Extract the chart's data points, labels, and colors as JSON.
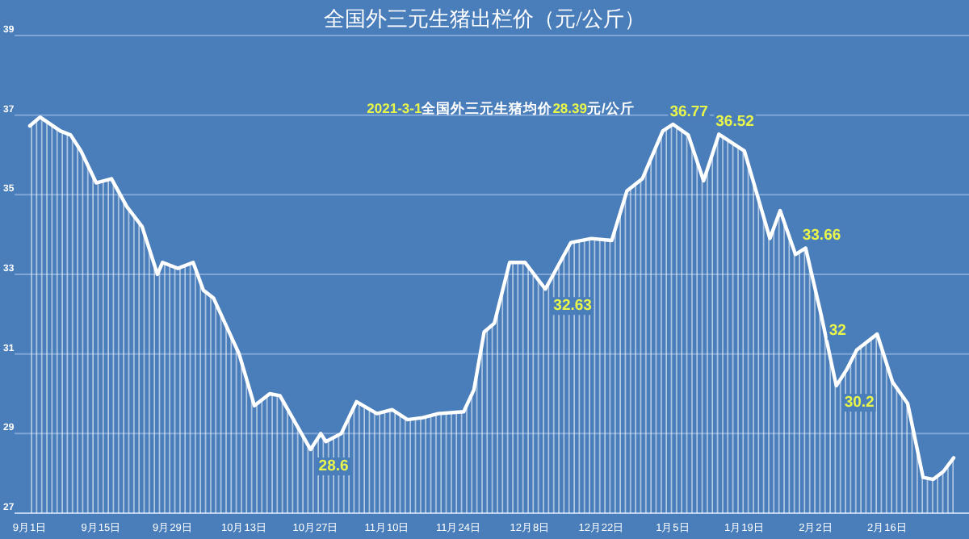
{
  "chart_data": {
    "type": "area",
    "title": "全国外三元生猪出栏价（元/公斤）",
    "annotations": [
      "2021-3-1全国外三元生猪均价28.39元/公斤",
      {
        "text": "28.6",
        "x": "2020-10-26",
        "y": 28.6
      },
      {
        "text": "32.63",
        "x": "2020-12-11",
        "y": 32.63
      },
      {
        "text": "36.77",
        "x": "2021-01-05",
        "y": 36.77
      },
      {
        "text": "36.52",
        "x": "2021-01-14",
        "y": 36.52
      },
      {
        "text": "33.66",
        "x": "2021-01-31",
        "y": 33.66
      },
      {
        "text": "32",
        "x": "2021-02-03",
        "y": 32
      },
      {
        "text": "30.2",
        "x": "2021-02-06",
        "y": 30.2
      }
    ],
    "x": [
      "2020-09-01",
      "2020-09-03",
      "2020-09-07",
      "2020-09-09",
      "2020-09-11",
      "2020-09-14",
      "2020-09-17",
      "2020-09-20",
      "2020-09-23",
      "2020-09-26",
      "2020-09-27",
      "2020-09-30",
      "2020-10-03",
      "2020-10-05",
      "2020-10-07",
      "2020-10-12",
      "2020-10-15",
      "2020-10-18",
      "2020-10-20",
      "2020-10-26",
      "2020-10-28",
      "2020-10-29",
      "2020-11-01",
      "2020-11-04",
      "2020-11-08",
      "2020-11-11",
      "2020-11-14",
      "2020-11-17",
      "2020-11-20",
      "2020-11-25",
      "2020-11-27",
      "2020-11-29",
      "2020-12-01",
      "2020-12-04",
      "2020-12-07",
      "2020-12-11",
      "2020-12-16",
      "2020-12-20",
      "2020-12-24",
      "2020-12-27",
      "2020-12-30",
      "2021-01-03",
      "2021-01-05",
      "2021-01-08",
      "2021-01-11",
      "2021-01-14",
      "2021-01-19",
      "2021-01-24",
      "2021-01-26",
      "2021-01-29",
      "2021-01-31",
      "2021-02-03",
      "2021-02-06",
      "2021-02-08",
      "2021-02-10",
      "2021-02-14",
      "2021-02-17",
      "2021-02-20",
      "2021-02-23",
      "2021-02-25",
      "2021-02-27",
      "2021-03-01"
    ],
    "series": [
      {
        "color": "#ffffff",
        "values": [
          36.73,
          36.95,
          36.6,
          36.5,
          36.1,
          35.3,
          35.4,
          34.7,
          34.2,
          33.0,
          33.3,
          33.15,
          33.3,
          32.6,
          32.4,
          31.0,
          29.7,
          30.0,
          29.95,
          28.6,
          29.0,
          28.8,
          29.0,
          29.8,
          29.5,
          29.6,
          29.35,
          29.4,
          29.5,
          29.55,
          30.1,
          31.55,
          31.77,
          33.3,
          33.3,
          32.63,
          33.8,
          33.9,
          33.85,
          35.1,
          35.4,
          36.6,
          36.77,
          36.5,
          35.35,
          36.52,
          36.1,
          33.9,
          34.6,
          33.5,
          33.66,
          32,
          30.2,
          30.6,
          31.1,
          31.5,
          30.3,
          29.75,
          27.9,
          27.85,
          28.05,
          28.39
        ]
      }
    ],
    "xlim": [
      "2020-08-29",
      "2021-03-04"
    ],
    "ylim": [
      27,
      39
    ],
    "yticks": [
      27,
      29,
      31,
      33,
      35,
      37,
      39
    ],
    "xticks": [
      {
        "value": "2020-09-01",
        "label": "9月1日"
      },
      {
        "value": "2020-09-15",
        "label": "9月15日"
      },
      {
        "value": "2020-09-29",
        "label": "9月29日"
      },
      {
        "value": "2020-10-13",
        "label": "10月13日"
      },
      {
        "value": "2020-10-27",
        "label": "10月27日"
      },
      {
        "value": "2020-11-10",
        "label": "11月10日"
      },
      {
        "value": "2020-11-24",
        "label": "11月24日"
      },
      {
        "value": "2020-12-08",
        "label": "12月8日"
      },
      {
        "value": "2020-12-22",
        "label": "12月22日"
      },
      {
        "value": "2021-01-05",
        "label": "1月5日"
      },
      {
        "value": "2021-01-19",
        "label": "1月19日"
      },
      {
        "value": "2021-02-02",
        "label": "2月2日"
      },
      {
        "value": "2021-02-16",
        "label": "2月16日"
      }
    ],
    "grid": "y"
  }
}
